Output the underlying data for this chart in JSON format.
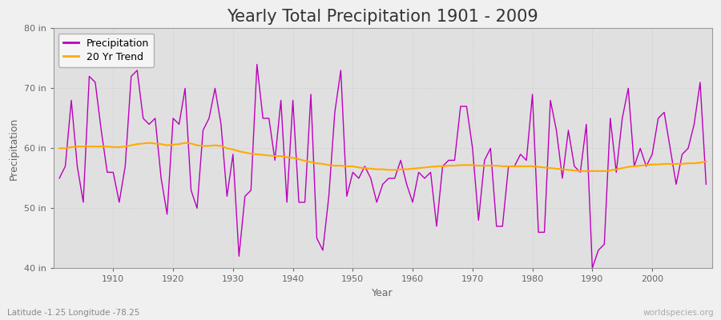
{
  "title": "Yearly Total Precipitation 1901 - 2009",
  "xlabel": "Year",
  "ylabel": "Precipitation",
  "fig_bg_color": "#f0f0f0",
  "plot_bg_color": "#e0e0e0",
  "precip_color": "#bb00bb",
  "trend_color": "#ffaa00",
  "ylim": [
    40,
    80
  ],
  "yticks": [
    40,
    50,
    60,
    70,
    80
  ],
  "ytick_labels": [
    "40 in",
    "50 in",
    "60 in",
    "70 in",
    "80 in"
  ],
  "years": [
    1901,
    1902,
    1903,
    1904,
    1905,
    1906,
    1907,
    1908,
    1909,
    1910,
    1911,
    1912,
    1913,
    1914,
    1915,
    1916,
    1917,
    1918,
    1919,
    1920,
    1921,
    1922,
    1923,
    1924,
    1925,
    1926,
    1927,
    1928,
    1929,
    1930,
    1931,
    1932,
    1933,
    1934,
    1935,
    1936,
    1937,
    1938,
    1939,
    1940,
    1941,
    1942,
    1943,
    1944,
    1945,
    1946,
    1947,
    1948,
    1949,
    1950,
    1951,
    1952,
    1953,
    1954,
    1955,
    1956,
    1957,
    1958,
    1959,
    1960,
    1961,
    1962,
    1963,
    1964,
    1965,
    1966,
    1967,
    1968,
    1969,
    1970,
    1971,
    1972,
    1973,
    1974,
    1975,
    1976,
    1977,
    1978,
    1979,
    1980,
    1981,
    1982,
    1983,
    1984,
    1985,
    1986,
    1987,
    1988,
    1989,
    1990,
    1991,
    1992,
    1993,
    1994,
    1995,
    1996,
    1997,
    1998,
    1999,
    2000,
    2001,
    2002,
    2003,
    2004,
    2005,
    2006,
    2007,
    2008,
    2009
  ],
  "precip": [
    55.0,
    57.0,
    68.0,
    57.0,
    51.0,
    72.0,
    71.0,
    63.0,
    56.0,
    56.0,
    51.0,
    57.0,
    72.0,
    73.0,
    65.0,
    64.0,
    65.0,
    55.0,
    49.0,
    65.0,
    64.0,
    70.0,
    53.0,
    50.0,
    63.0,
    65.0,
    70.0,
    64.0,
    52.0,
    59.0,
    42.0,
    52.0,
    53.0,
    74.0,
    65.0,
    65.0,
    58.0,
    68.0,
    51.0,
    68.0,
    51.0,
    51.0,
    69.0,
    45.0,
    43.0,
    52.0,
    66.0,
    73.0,
    52.0,
    56.0,
    55.0,
    57.0,
    55.0,
    51.0,
    54.0,
    55.0,
    55.0,
    58.0,
    54.0,
    51.0,
    56.0,
    55.0,
    56.0,
    47.0,
    57.0,
    58.0,
    58.0,
    67.0,
    67.0,
    60.0,
    48.0,
    58.0,
    60.0,
    47.0,
    47.0,
    57.0,
    57.0,
    59.0,
    58.0,
    69.0,
    46.0,
    46.0,
    68.0,
    63.0,
    55.0,
    63.0,
    57.0,
    56.0,
    64.0,
    40.0,
    43.0,
    44.0,
    65.0,
    56.0,
    65.0,
    70.0,
    57.0,
    60.0,
    57.0,
    59.0,
    65.0,
    66.0,
    60.0,
    54.0,
    59.0,
    60.0,
    64.0,
    71.0,
    54.0
  ],
  "trend": [
    60.0,
    60.0,
    60.2,
    60.3,
    60.3,
    60.3,
    60.3,
    60.3,
    60.3,
    60.2,
    60.2,
    60.3,
    60.5,
    60.7,
    60.8,
    60.9,
    60.8,
    60.7,
    60.5,
    60.6,
    60.7,
    60.9,
    60.8,
    60.5,
    60.4,
    60.4,
    60.5,
    60.4,
    60.0,
    59.8,
    59.5,
    59.3,
    59.1,
    59.0,
    58.9,
    58.8,
    58.7,
    58.7,
    58.5,
    58.4,
    58.2,
    57.9,
    57.7,
    57.5,
    57.4,
    57.2,
    57.1,
    57.1,
    57.0,
    57.0,
    56.8,
    56.7,
    56.6,
    56.5,
    56.5,
    56.4,
    56.4,
    56.5,
    56.5,
    56.6,
    56.7,
    56.8,
    56.9,
    57.0,
    57.0,
    57.1,
    57.1,
    57.2,
    57.2,
    57.2,
    57.1,
    57.1,
    57.1,
    57.1,
    57.0,
    57.0,
    57.0,
    57.0,
    57.0,
    57.0,
    56.9,
    56.8,
    56.7,
    56.6,
    56.5,
    56.4,
    56.3,
    56.2,
    56.2,
    56.2,
    56.2,
    56.2,
    56.3,
    56.5,
    56.7,
    56.9,
    57.0,
    57.1,
    57.2,
    57.3,
    57.3,
    57.4,
    57.4,
    57.4,
    57.4,
    57.5,
    57.5,
    57.6,
    57.8
  ],
  "legend_labels": [
    "Precipitation",
    "20 Yr Trend"
  ],
  "subtitle": "Latitude -1.25 Longitude -78.25",
  "watermark": "worldspecies.org",
  "title_fontsize": 15,
  "label_fontsize": 9,
  "tick_fontsize": 8,
  "grid_color": "#c8c8c8",
  "tick_color": "#666666",
  "spine_color": "#999999"
}
